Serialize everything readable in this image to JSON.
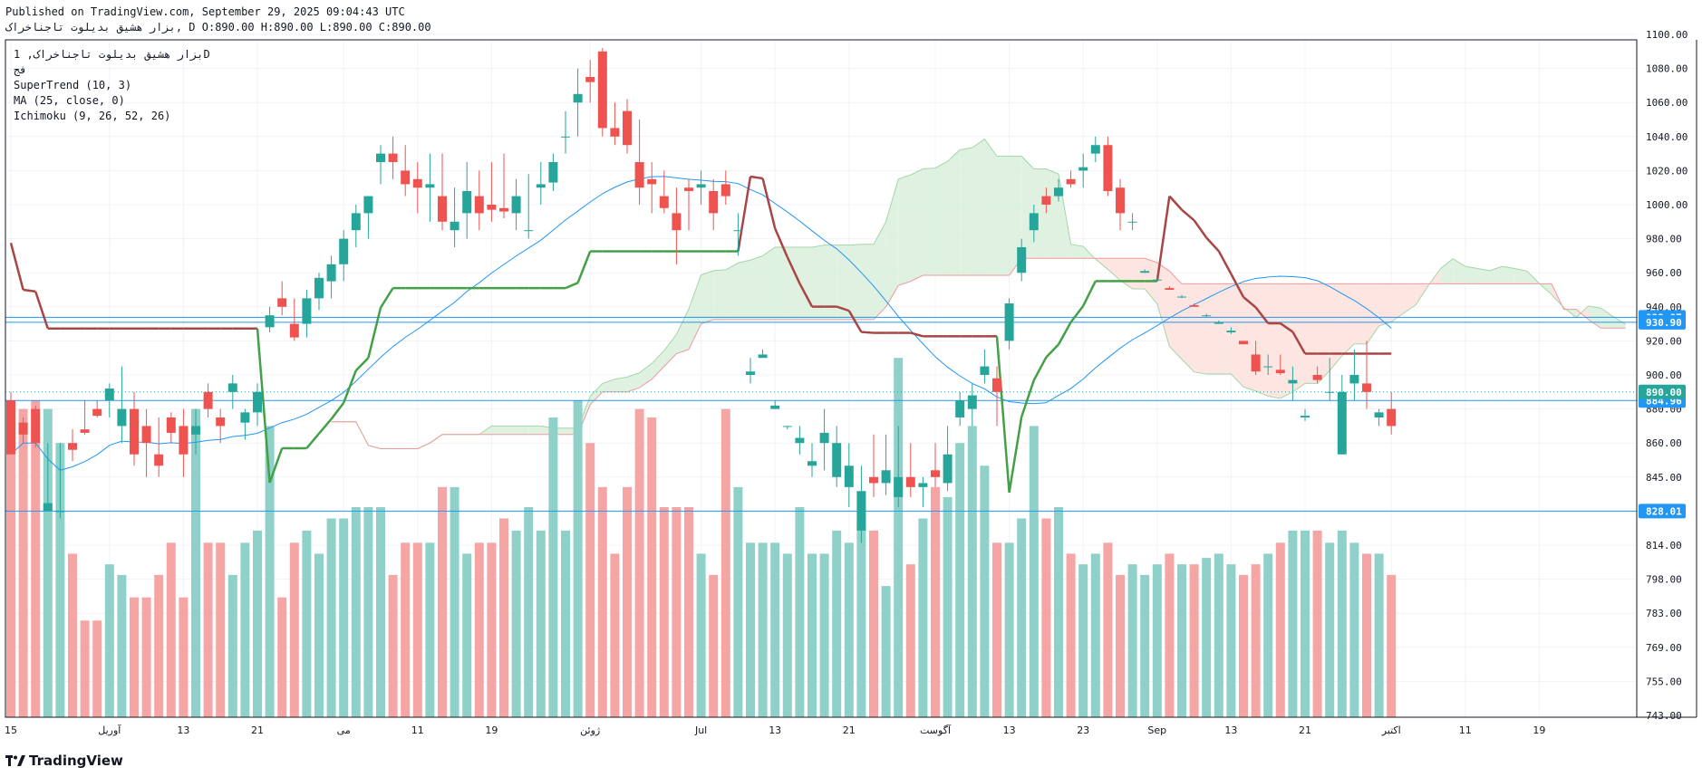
{
  "header": {
    "published": "Published on TradingView.com, September 29, 2025 09:04:43 UTC",
    "symbol_line": "بزار هشیق بدیلوت تاجناخراک, D O:890.00 H:890.00 L:890.00 C:890.00"
  },
  "legend": {
    "symbol": "بزار هشیق بدیلوت تاجناخراک, 1D",
    "exchange": "فج",
    "indicators": [
      "SuperTrend (10, 3)",
      "MA (25, close, 0)",
      "Ichimoku (9, 26, 52, 26)"
    ]
  },
  "brand": {
    "name": "TradingView"
  },
  "colors": {
    "up": "#26a69a",
    "down": "#ef5350",
    "vol_up": "#8fd1c9",
    "vol_down": "#f5a6a4",
    "ma": "#2196f3",
    "st_up": "#43a047",
    "st_down": "#a84646",
    "cloud_bull": "#d9f0dc",
    "cloud_bear": "#fde0dd",
    "price_line": "#2196f3",
    "current": "#26a69a"
  },
  "chart_data": {
    "type": "candlestick",
    "y_ticks": [
      743,
      755,
      769,
      783,
      798,
      814,
      828,
      845,
      860,
      880,
      900,
      920,
      940,
      960,
      980,
      1000,
      1020,
      1040,
      1060,
      1080,
      1100
    ],
    "y_tick_labels": [
      "743.00",
      "755.00",
      "769.00",
      "783.00",
      "798.00",
      "814.00",
      "828.00",
      "845.00",
      "860.00",
      "880.00",
      "900.00",
      "920.00",
      "940.00",
      "960.00",
      "980.00",
      "1000.00",
      "1020.00",
      "1040.00",
      "1060.00",
      "1080.00",
      "1100.00"
    ],
    "x_ticks": [
      {
        "i": 0,
        "label": "15"
      },
      {
        "i": 8,
        "label": "آوریل"
      },
      {
        "i": 14,
        "label": "13"
      },
      {
        "i": 20,
        "label": "21"
      },
      {
        "i": 27,
        "label": "می"
      },
      {
        "i": 33,
        "label": "11"
      },
      {
        "i": 39,
        "label": "19"
      },
      {
        "i": 47,
        "label": "ژوئن"
      },
      {
        "i": 56,
        "label": "Jul"
      },
      {
        "i": 62,
        "label": "13"
      },
      {
        "i": 68,
        "label": "21"
      },
      {
        "i": 75,
        "label": "آگوست"
      },
      {
        "i": 81,
        "label": "13"
      },
      {
        "i": 87,
        "label": "23"
      },
      {
        "i": 93,
        "label": "Sep"
      },
      {
        "i": 99,
        "label": "13"
      },
      {
        "i": 105,
        "label": "21"
      },
      {
        "i": 112,
        "label": "اکتبر"
      },
      {
        "i": 118,
        "label": "11"
      },
      {
        "i": 124,
        "label": "19"
      }
    ],
    "price_lines": [
      {
        "value": 933.87,
        "label": "933.87"
      },
      {
        "value": 930.9,
        "label": "930.90"
      },
      {
        "value": 884.96,
        "label": "884.96"
      },
      {
        "value": 828.01,
        "label": "828.01"
      }
    ],
    "current_price": {
      "value": 890,
      "label": "890.00"
    },
    "candles": [
      [
        885,
        890,
        855,
        855,
        880
      ],
      [
        872,
        875,
        860,
        865,
        880
      ],
      [
        880,
        882,
        858,
        860,
        885
      ],
      [
        828,
        860,
        828,
        832,
        880
      ],
      [
        828,
        860,
        825,
        828,
        860
      ],
      [
        860,
        868,
        852,
        857,
        810
      ],
      [
        868,
        885,
        865,
        866,
        780
      ],
      [
        880,
        885,
        875,
        876,
        780
      ],
      [
        885,
        895,
        875,
        892,
        805
      ],
      [
        870,
        905,
        860,
        880,
        800
      ],
      [
        880,
        890,
        850,
        855,
        790
      ],
      [
        870,
        880,
        845,
        860,
        790
      ],
      [
        855,
        875,
        845,
        850,
        800
      ],
      [
        875,
        878,
        860,
        866,
        815
      ],
      [
        870,
        880,
        845,
        855,
        790
      ],
      [
        865,
        880,
        855,
        870,
        880
      ],
      [
        890,
        895,
        875,
        880,
        815
      ],
      [
        875,
        880,
        860,
        870,
        815
      ],
      [
        890,
        900,
        880,
        895,
        800
      ],
      [
        872,
        880,
        862,
        878,
        815
      ],
      [
        878,
        895,
        870,
        890,
        820
      ],
      [
        928,
        940,
        925,
        935,
        870
      ],
      [
        945,
        955,
        935,
        940,
        790
      ],
      [
        930,
        945,
        920,
        922,
        815
      ],
      [
        930,
        950,
        922,
        945,
        820
      ],
      [
        945,
        960,
        938,
        957,
        810
      ],
      [
        955,
        970,
        945,
        965,
        825
      ],
      [
        965,
        985,
        955,
        980,
        825
      ],
      [
        985,
        1000,
        975,
        995,
        830
      ],
      [
        995,
        1005,
        980,
        1005,
        830
      ],
      [
        1025,
        1035,
        1012,
        1030,
        830
      ],
      [
        1030,
        1040,
        1015,
        1025,
        800
      ],
      [
        1020,
        1035,
        1005,
        1012,
        815
      ],
      [
        1015,
        1025,
        995,
        1010,
        815
      ],
      [
        1010,
        1030,
        990,
        1012,
        815
      ],
      [
        1005,
        1030,
        985,
        990,
        840
      ],
      [
        985,
        1010,
        975,
        990,
        840
      ],
      [
        995,
        1025,
        980,
        1008,
        810
      ],
      [
        1005,
        1020,
        985,
        995,
        815
      ],
      [
        1000,
        1025,
        990,
        997,
        815
      ],
      [
        998,
        1030,
        992,
        996,
        825
      ],
      [
        995,
        1015,
        985,
        1005,
        820
      ],
      [
        985,
        1018,
        980,
        985,
        830
      ],
      [
        1010,
        1025,
        1000,
        1012,
        820
      ],
      [
        1013,
        1030,
        1008,
        1025,
        875
      ],
      [
        1040,
        1055,
        1030,
        1040,
        820
      ],
      [
        1060,
        1080,
        1040,
        1065,
        885
      ],
      [
        1075,
        1085,
        1060,
        1072,
        860
      ],
      [
        1090,
        1092,
        1040,
        1045,
        840
      ],
      [
        1045,
        1060,
        1035,
        1040,
        810
      ],
      [
        1055,
        1062,
        1030,
        1035,
        840
      ],
      [
        1025,
        1050,
        1000,
        1010,
        880
      ],
      [
        1015,
        1025,
        995,
        1012,
        875
      ],
      [
        1005,
        1020,
        995,
        998,
        830
      ],
      [
        995,
        1010,
        965,
        985,
        830
      ],
      [
        1010,
        1015,
        985,
        1008,
        830
      ],
      [
        1010,
        1020,
        1000,
        1012,
        810
      ],
      [
        1008,
        1015,
        985,
        995,
        800
      ],
      [
        1012,
        1020,
        1000,
        1005,
        880
      ],
      [
        985,
        995,
        970,
        985,
        840
      ],
      [
        900,
        910,
        895,
        902,
        815
      ],
      [
        910,
        915,
        910,
        912,
        815
      ],
      [
        880,
        885,
        880,
        882,
        815
      ],
      [
        870,
        870,
        868,
        870,
        810
      ],
      [
        860,
        870,
        855,
        863,
        830
      ],
      [
        850,
        860,
        845,
        852,
        810
      ],
      [
        860,
        880,
        848,
        866,
        810
      ],
      [
        845,
        870,
        840,
        860,
        820
      ],
      [
        840,
        860,
        830,
        850,
        815
      ],
      [
        820,
        850,
        815,
        838,
        825
      ],
      [
        845,
        865,
        835,
        842,
        820
      ],
      [
        842,
        865,
        836,
        848,
        795
      ],
      [
        835,
        870,
        830,
        845,
        910
      ],
      [
        845,
        860,
        835,
        840,
        805
      ],
      [
        840,
        845,
        830,
        842,
        825
      ],
      [
        848,
        860,
        840,
        845,
        840
      ],
      [
        842,
        870,
        838,
        855,
        835
      ],
      [
        875,
        890,
        870,
        885,
        860
      ],
      [
        880,
        895,
        870,
        888,
        870
      ],
      [
        900,
        915,
        895,
        905,
        850
      ],
      [
        898,
        905,
        870,
        890,
        815
      ],
      [
        920,
        945,
        915,
        942,
        815
      ],
      [
        960,
        980,
        955,
        975,
        825
      ],
      [
        985,
        1000,
        978,
        995,
        870
      ],
      [
        1005,
        1010,
        995,
        1000,
        825
      ],
      [
        1005,
        1015,
        1002,
        1010,
        830
      ],
      [
        1015,
        1020,
        1010,
        1012,
        810
      ],
      [
        1020,
        1030,
        1010,
        1022,
        805
      ],
      [
        1030,
        1040,
        1025,
        1035,
        810
      ],
      [
        1035,
        1040,
        1005,
        1008,
        815
      ],
      [
        1010,
        1015,
        985,
        995,
        800
      ],
      [
        990,
        995,
        985,
        990,
        805
      ],
      [
        960,
        962,
        960,
        961,
        800
      ],
      [
        956,
        957,
        955,
        956,
        805
      ],
      [
        951,
        952,
        950,
        950,
        810
      ],
      [
        946,
        947,
        945,
        946,
        805
      ],
      [
        941,
        942,
        940,
        940,
        805
      ],
      [
        935,
        936,
        934,
        935,
        808
      ],
      [
        930,
        932,
        930,
        931,
        810
      ],
      [
        925,
        928,
        924,
        926,
        805
      ],
      [
        920,
        920,
        918,
        918,
        800
      ],
      [
        912,
        920,
        900,
        902,
        805
      ],
      [
        905,
        912,
        900,
        905,
        810
      ],
      [
        903,
        912,
        900,
        901,
        815
      ],
      [
        895,
        905,
        885,
        897,
        820
      ],
      [
        875,
        880,
        873,
        876,
        820
      ],
      [
        900,
        905,
        895,
        897,
        820
      ],
      [
        890,
        910,
        885,
        890,
        815
      ],
      [
        855,
        900,
        855,
        890,
        820
      ],
      [
        895,
        915,
        885,
        900,
        815
      ],
      [
        895,
        920,
        880,
        890,
        810
      ],
      [
        875,
        880,
        870,
        878,
        810
      ],
      [
        880,
        890,
        865,
        870,
        800
      ]
    ]
  }
}
